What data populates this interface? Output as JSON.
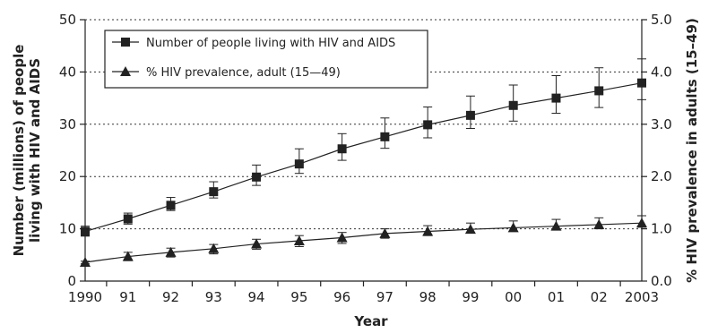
{
  "chart_data": {
    "type": "line",
    "xlabel": "Year",
    "ylabel_left": "Number (millions) of people living with HIV and AIDS",
    "ylabel_right": "% HIV prevalence in adults (15–49)",
    "x_tick_labels": [
      "1990",
      "91",
      "92",
      "93",
      "94",
      "95",
      "96",
      "97",
      "98",
      "99",
      "00",
      "01",
      "02",
      "2003"
    ],
    "y_left_ticks": [
      "0",
      "10",
      "20",
      "30",
      "40",
      "50"
    ],
    "y_right_ticks": [
      "0.0",
      "1.0",
      "2.0",
      "3.0",
      "4.0",
      "5.0"
    ],
    "ylim_left": [
      0,
      50
    ],
    "ylim_right": [
      0,
      5
    ],
    "grid": "horizontal dotted",
    "legend_position": "top-left",
    "series": [
      {
        "name": "Number of people living with HIV and AIDS",
        "marker": "square",
        "axis": "left",
        "values": [
          9.5,
          11.9,
          14.5,
          17.1,
          19.9,
          22.4,
          25.3,
          27.6,
          29.9,
          31.7,
          33.6,
          35.0,
          36.4,
          37.9
        ],
        "error_low": [
          8.6,
          10.9,
          13.5,
          15.9,
          18.3,
          20.6,
          23.1,
          25.4,
          27.4,
          29.2,
          30.6,
          32.1,
          33.2,
          34.7
        ],
        "error_high": [
          10.5,
          13.0,
          16.0,
          19.0,
          22.2,
          25.3,
          28.2,
          31.2,
          33.3,
          35.4,
          37.5,
          39.3,
          40.8,
          42.5
        ]
      },
      {
        "name": "% HIV prevalence, adult (15—49)",
        "marker": "triangle",
        "axis": "right",
        "values": [
          0.36,
          0.47,
          0.55,
          0.62,
          0.71,
          0.77,
          0.83,
          0.91,
          0.95,
          0.99,
          1.02,
          1.05,
          1.08,
          1.11
        ],
        "error_low": [
          0.33,
          0.39,
          0.46,
          0.52,
          0.61,
          0.66,
          0.72,
          0.82,
          0.87,
          0.92,
          0.95,
          0.98,
          1.0,
          1.03
        ],
        "error_high": [
          0.38,
          0.55,
          0.63,
          0.7,
          0.8,
          0.87,
          0.93,
          1.0,
          1.06,
          1.11,
          1.15,
          1.18,
          1.21,
          1.25
        ]
      }
    ]
  }
}
